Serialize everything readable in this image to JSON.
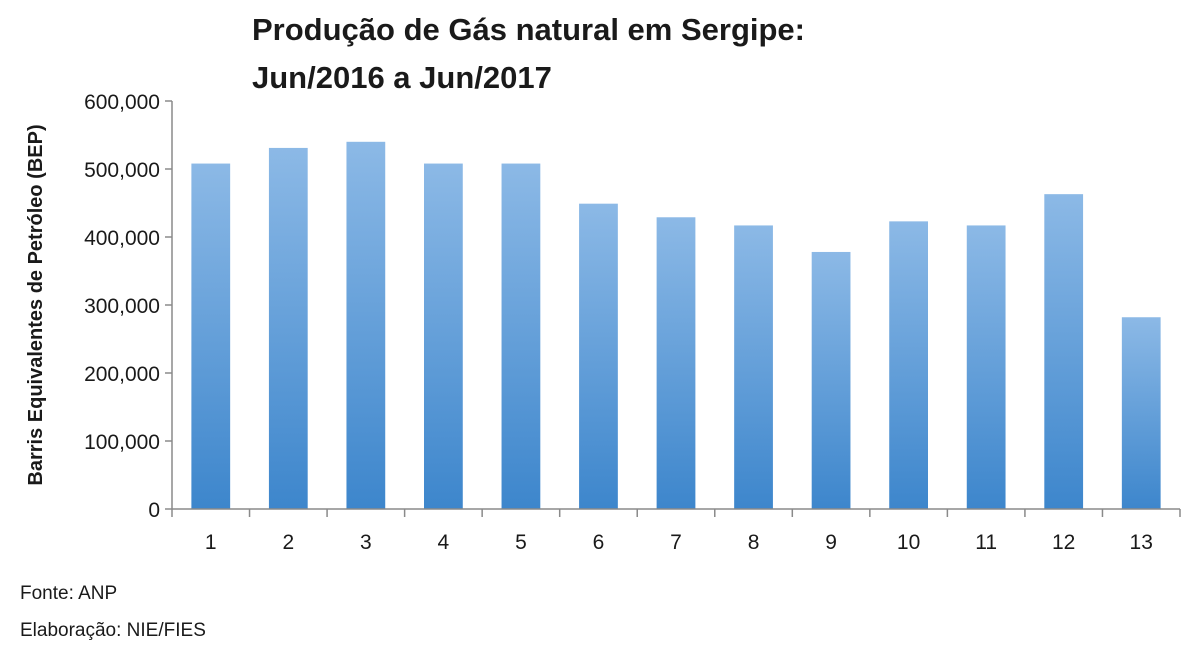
{
  "chart_data": {
    "type": "bar",
    "title": [
      "Produção de Gás natural em Sergipe:",
      "Jun/2016 a Jun/2017"
    ],
    "xlabel": "",
    "ylabel": "Barris Equivalentes de Petróleo (BEP)",
    "categories": [
      "1",
      "2",
      "3",
      "4",
      "5",
      "6",
      "7",
      "8",
      "9",
      "10",
      "11",
      "12",
      "13"
    ],
    "values": [
      508000,
      531000,
      540000,
      508000,
      508000,
      449000,
      429000,
      417000,
      378000,
      423000,
      417000,
      463000,
      282000
    ],
    "ylim": [
      0,
      600000
    ],
    "yticks": [
      0,
      100000,
      200000,
      300000,
      400000,
      500000,
      600000
    ],
    "ytick_labels": [
      "0",
      "100,000",
      "200,000",
      "300,000",
      "400,000",
      "500,000",
      "600,000"
    ],
    "grid": false,
    "legend": "none",
    "bar_color_top": "#8cb9e6",
    "bar_color_bottom": "#3d86cc",
    "axis_color": "#8a8a8a"
  },
  "footer": {
    "source": "Fonte: ANP",
    "prepared_by": "Elaboração: NIE/FIES"
  }
}
